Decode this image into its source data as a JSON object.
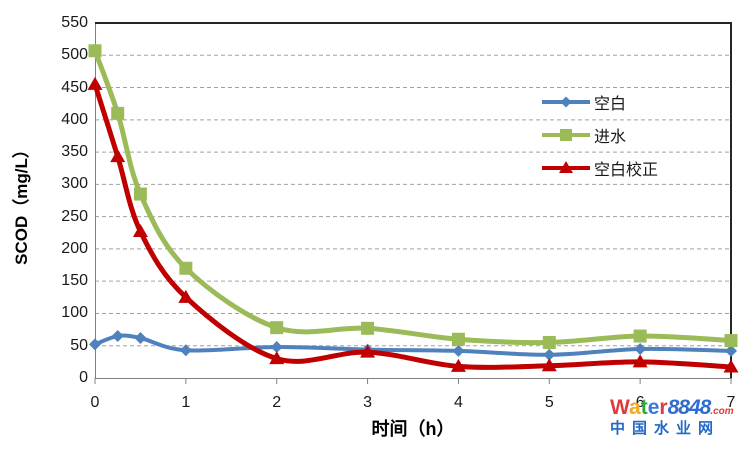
{
  "chart_data": {
    "type": "line",
    "title": "",
    "xlabel": "时间（h）",
    "ylabel": "SCOD（mg/L）",
    "x": [
      0,
      0.25,
      0.5,
      1,
      2,
      3,
      4,
      5,
      6,
      7
    ],
    "xticks": [
      0,
      1,
      2,
      3,
      4,
      5,
      6,
      7
    ],
    "yticks": [
      0,
      50,
      100,
      150,
      200,
      250,
      300,
      350,
      400,
      450,
      500,
      550
    ],
    "xlim": [
      0,
      7
    ],
    "ylim": [
      0,
      550
    ],
    "grid": "horizontal dashed gray lines every 50",
    "legend_position": "inside upper-right, no border",
    "series": [
      {
        "name": "空白",
        "marker": "diamond",
        "color": "#4F81BD",
        "values": [
          52,
          65,
          62,
          43,
          48,
          44,
          42,
          36,
          45,
          42
        ]
      },
      {
        "name": "进水",
        "marker": "square",
        "color": "#9BBB59",
        "values": [
          507,
          410,
          285,
          170,
          78,
          77,
          60,
          55,
          65,
          58
        ]
      },
      {
        "name": "空白校正",
        "marker": "triangle",
        "color": "#C00000",
        "values": [
          455,
          343,
          227,
          125,
          30,
          40,
          18,
          19,
          25,
          17
        ]
      }
    ]
  },
  "colors": {
    "plot_border_dark": "#262626",
    "axis_line_gray": "#808080",
    "gridline": "#A0A0A0"
  },
  "watermark": {
    "word_letters": [
      {
        "ch": "W",
        "color": "#E03A3E"
      },
      {
        "ch": "a",
        "color": "#F5A81C"
      },
      {
        "ch": "t",
        "color": "#31A83A"
      },
      {
        "ch": "e",
        "color": "#3B78DE"
      },
      {
        "ch": "r",
        "color": "#E03A3E"
      }
    ],
    "number": "8848",
    "domain_suffix": ".com",
    "line2": "中国水业网"
  }
}
